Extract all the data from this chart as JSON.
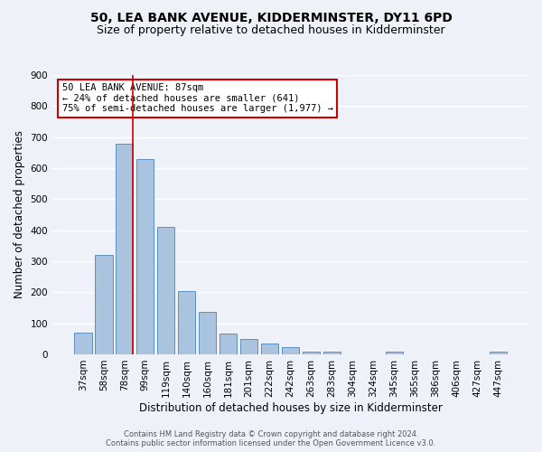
{
  "title": "50, LEA BANK AVENUE, KIDDERMINSTER, DY11 6PD",
  "subtitle": "Size of property relative to detached houses in Kidderminster",
  "xlabel": "Distribution of detached houses by size in Kidderminster",
  "ylabel": "Number of detached properties",
  "bar_labels": [
    "37sqm",
    "58sqm",
    "78sqm",
    "99sqm",
    "119sqm",
    "140sqm",
    "160sqm",
    "181sqm",
    "201sqm",
    "222sqm",
    "242sqm",
    "263sqm",
    "283sqm",
    "304sqm",
    "324sqm",
    "345sqm",
    "365sqm",
    "386sqm",
    "406sqm",
    "427sqm",
    "447sqm"
  ],
  "bar_values": [
    70,
    320,
    680,
    630,
    410,
    205,
    138,
    68,
    48,
    35,
    22,
    10,
    8,
    0,
    0,
    8,
    0,
    0,
    0,
    0,
    8
  ],
  "bar_color": "#aac4e0",
  "bar_edge_color": "#5b8fc0",
  "ylim": [
    0,
    900
  ],
  "yticks": [
    0,
    100,
    200,
    300,
    400,
    500,
    600,
    700,
    800,
    900
  ],
  "red_line_x": 2.425,
  "annotation_title": "50 LEA BANK AVENUE: 87sqm",
  "annotation_line1": "← 24% of detached houses are smaller (641)",
  "annotation_line2": "75% of semi-detached houses are larger (1,977) →",
  "annotation_box_color": "#ffffff",
  "annotation_box_edge_color": "#cc0000",
  "red_line_color": "#cc0000",
  "footer1": "Contains HM Land Registry data © Crown copyright and database right 2024.",
  "footer2": "Contains public sector information licensed under the Open Government Licence v3.0.",
  "background_color": "#eef2f8",
  "grid_color": "#ffffff",
  "title_fontsize": 10,
  "subtitle_fontsize": 9,
  "axis_label_fontsize": 8.5,
  "tick_fontsize": 7.5,
  "annotation_fontsize": 7.5,
  "footer_fontsize": 6
}
